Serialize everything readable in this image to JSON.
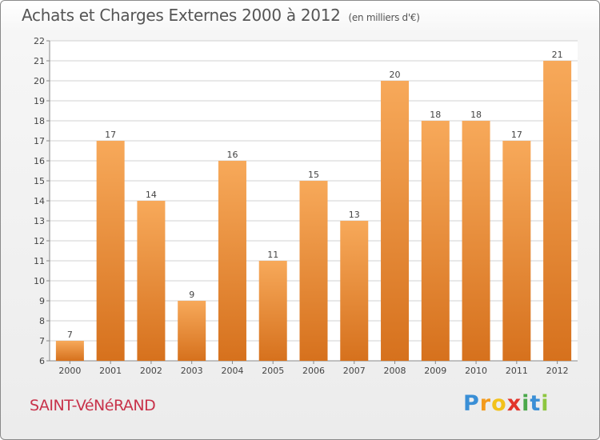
{
  "header": {
    "title": "Achats et Charges Externes 2000 à 2012",
    "unit": "(en milliers d'€)"
  },
  "footer": {
    "commune": "SAINT-VéNéRAND",
    "logo": {
      "letters": [
        "P",
        "r",
        "o",
        "x",
        "i",
        "t",
        "i"
      ],
      "colors": [
        "#3a8fd6",
        "#f39a1c",
        "#f2c21b",
        "#e2342a",
        "#4aa84a",
        "#3a8fd6",
        "#8dc63f"
      ]
    }
  },
  "colors": {
    "bar_light": "#f7a95a",
    "bar_dark": "#d6711d",
    "grid": "#d0d0d0",
    "axis_text": "#444444"
  },
  "chart_data": {
    "type": "bar",
    "title": "Achats et Charges Externes 2000 à 2012",
    "subtitle": "(en milliers d'€)",
    "categories": [
      "2000",
      "2001",
      "2002",
      "2003",
      "2004",
      "2005",
      "2006",
      "2007",
      "2008",
      "2009",
      "2010",
      "2011",
      "2012"
    ],
    "values": [
      7,
      17,
      14,
      9,
      16,
      11,
      15,
      13,
      20,
      18,
      18,
      17,
      21
    ],
    "ylim": [
      6,
      22
    ],
    "yticks": [
      6,
      7,
      8,
      9,
      10,
      11,
      12,
      13,
      14,
      15,
      16,
      17,
      18,
      19,
      20,
      21,
      22
    ],
    "grid": true,
    "data_labels": true
  }
}
